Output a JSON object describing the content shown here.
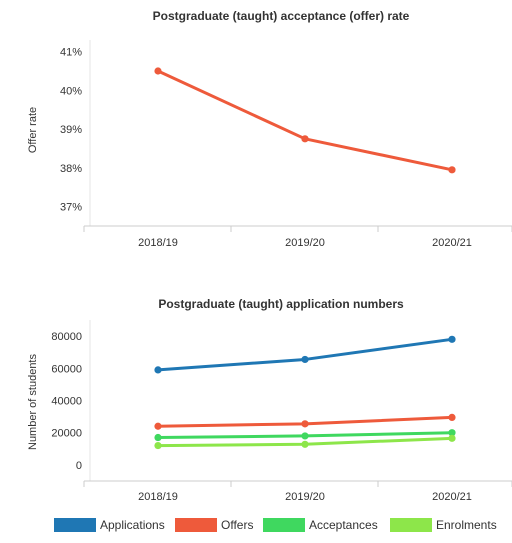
{
  "chart_data": [
    {
      "type": "line",
      "title": "Postgraduate (taught) acceptance (offer) rate",
      "xlabel": "",
      "ylabel": "Offer rate",
      "categories": [
        "2018/19",
        "2019/20",
        "2020/21"
      ],
      "series": [
        {
          "values": [
            40.5,
            38.75,
            37.95
          ],
          "color": "#ee5a3b"
        }
      ],
      "ylim": [
        36.5,
        41.3
      ],
      "yticks": [
        "41%",
        "40%",
        "39%",
        "38%",
        "37%"
      ],
      "ytick_values": [
        41,
        40,
        39,
        38,
        37
      ],
      "grid": false,
      "legend": "none"
    },
    {
      "type": "line",
      "title": "Postgraduate (taught) application numbers",
      "xlabel": "",
      "ylabel": "Number of students",
      "categories": [
        "2018/19",
        "2019/20",
        "2020/21"
      ],
      "series": [
        {
          "name": "Applications",
          "values": [
            59000,
            65500,
            78000
          ],
          "color": "#1f77b4"
        },
        {
          "name": "Offers",
          "values": [
            24000,
            25500,
            29500
          ],
          "color": "#ee5a3b"
        },
        {
          "name": "Acceptances",
          "values": [
            17000,
            18000,
            20000
          ],
          "color": "#3fd85f"
        },
        {
          "name": "Enrolments",
          "values": [
            12000,
            12800,
            16500
          ],
          "color": "#8de64a"
        }
      ],
      "ylim": [
        -10000,
        90000
      ],
      "yticks": [
        "80000",
        "60000",
        "40000",
        "20000",
        "0"
      ],
      "ytick_values": [
        80000,
        60000,
        40000,
        20000,
        0
      ],
      "grid": false,
      "legend": "bottom"
    }
  ]
}
